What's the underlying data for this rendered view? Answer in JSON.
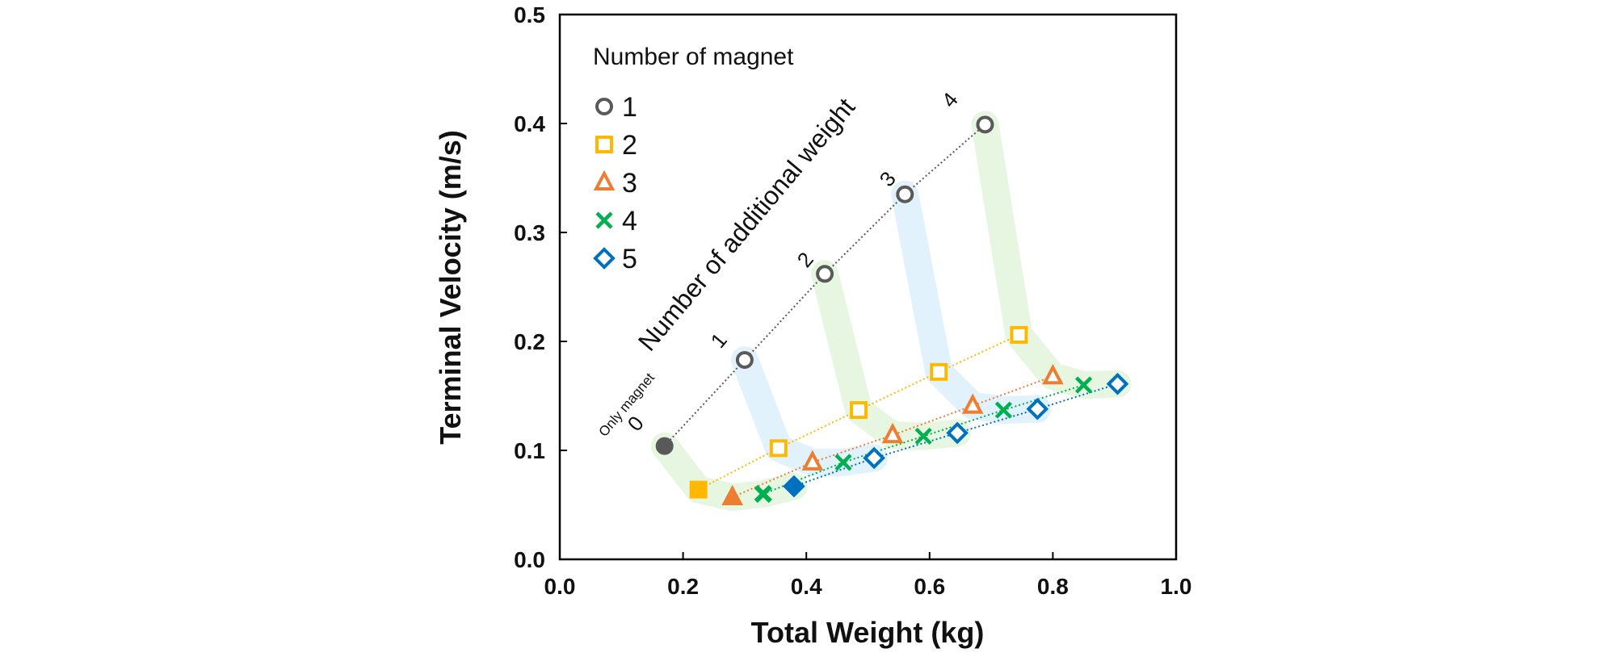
{
  "chart_data": {
    "type": "scatter",
    "title": "",
    "xlabel": "Total Weight (kg)",
    "ylabel": "Terminal Velocity (m/s)",
    "xlim": [
      0.0,
      1.0
    ],
    "ylim": [
      0.0,
      0.5
    ],
    "x_ticks": [
      "0.0",
      "0.2",
      "0.4",
      "0.6",
      "0.8",
      "1.0"
    ],
    "y_ticks": [
      "0.0",
      "0.1",
      "0.2",
      "0.3",
      "0.4",
      "0.5"
    ],
    "grid": false,
    "legend": {
      "title": "Number of magnet",
      "placement": "top-left"
    },
    "series": [
      {
        "name": "1",
        "marker": "circle",
        "color": "#595959",
        "x": [
          0.17,
          0.3,
          0.43,
          0.56,
          0.69
        ],
        "y": [
          0.104,
          0.183,
          0.262,
          0.335,
          0.399
        ]
      },
      {
        "name": "2",
        "marker": "square",
        "color": "#ffb800",
        "x": [
          0.225,
          0.355,
          0.485,
          0.615,
          0.745
        ],
        "y": [
          0.064,
          0.102,
          0.137,
          0.172,
          0.206
        ]
      },
      {
        "name": "3",
        "marker": "triangle",
        "color": "#ed7d31",
        "x": [
          0.28,
          0.41,
          0.54,
          0.67,
          0.8
        ],
        "y": [
          0.057,
          0.089,
          0.114,
          0.141,
          0.168
        ]
      },
      {
        "name": "4",
        "marker": "x",
        "color": "#00b050",
        "x": [
          0.33,
          0.46,
          0.59,
          0.72,
          0.85
        ],
        "y": [
          0.06,
          0.089,
          0.113,
          0.137,
          0.16
        ]
      },
      {
        "name": "5",
        "marker": "diamond",
        "color": "#0070c0",
        "x": [
          0.38,
          0.51,
          0.645,
          0.775,
          0.905
        ],
        "y": [
          0.067,
          0.093,
          0.116,
          0.138,
          0.161
        ]
      }
    ],
    "annotations": {
      "rotated_title": "Number of additional weight",
      "only_magnet": "Only magnet",
      "counts": [
        "0",
        "1",
        "2",
        "3",
        "4"
      ]
    }
  }
}
